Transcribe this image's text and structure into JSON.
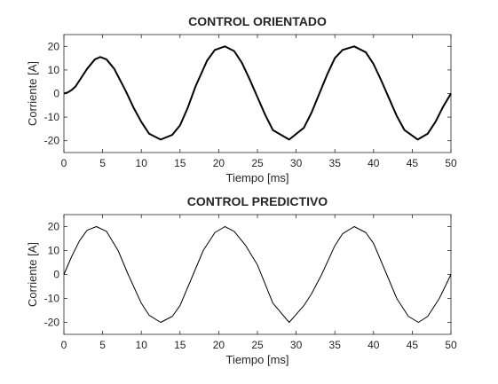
{
  "chart_data": [
    {
      "type": "line",
      "title": "CONTROL ORIENTADO",
      "xlabel": "Tiempo [ms]",
      "ylabel": "Corriente [A]",
      "xlim": [
        0,
        50
      ],
      "ylim": [
        -25,
        25
      ],
      "xticks": [
        "0",
        "5",
        "10",
        "15",
        "20",
        "25",
        "30",
        "35",
        "40",
        "45",
        "50"
      ],
      "yticks": [
        "-20",
        "-10",
        "0",
        "10",
        "20"
      ],
      "grid": false,
      "line_color": "#000000",
      "series": [
        {
          "x": [
            0,
            0.5,
            1,
            1.5,
            2,
            3,
            4,
            4.7,
            5.5,
            6.5,
            8,
            9,
            10,
            11,
            12.5,
            14,
            15,
            16,
            17,
            18.5,
            19.5,
            20.8,
            22,
            23,
            24,
            25,
            26,
            27,
            29.1,
            31,
            32,
            33,
            34,
            35,
            36,
            37.5,
            39,
            40,
            41,
            42,
            43,
            44,
            45.7,
            47,
            48,
            49,
            50
          ],
          "y": [
            0,
            0.5,
            1.5,
            3,
            5.5,
            10.5,
            14.5,
            15.5,
            14.5,
            10.5,
            1,
            -6,
            -12,
            -17,
            -19.5,
            -17.5,
            -13.5,
            -6,
            3,
            14,
            18.5,
            20,
            18,
            13,
            6,
            -1.5,
            -9,
            -15.5,
            -19.5,
            -14.5,
            -8,
            0,
            8,
            15,
            18.5,
            20,
            17.5,
            12.5,
            5.5,
            -2,
            -9.5,
            -15.5,
            -19.5,
            -17,
            -12,
            -5.5,
            0
          ]
        }
      ]
    },
    {
      "type": "line",
      "title": "CONTROL PREDICTIVO",
      "xlabel": "Tiempo [ms]",
      "ylabel": "Corriente [A]",
      "xlim": [
        0,
        50
      ],
      "ylim": [
        -25,
        25
      ],
      "xticks": [
        "0",
        "5",
        "10",
        "15",
        "20",
        "25",
        "30",
        "35",
        "40",
        "45",
        "50"
      ],
      "yticks": [
        "-20",
        "-10",
        "0",
        "10",
        "20"
      ],
      "grid": false,
      "line_color": "#000000",
      "series": [
        {
          "x": [
            0,
            1,
            2,
            3,
            4.2,
            5.5,
            7,
            8.3,
            10,
            11,
            12.5,
            14,
            15,
            16.7,
            18,
            19.5,
            20.8,
            22,
            23.5,
            25,
            27,
            29.1,
            31,
            32,
            33.3,
            35,
            36,
            37.5,
            39,
            40,
            41.7,
            43,
            44.5,
            45.8,
            47,
            48.5,
            50
          ],
          "y": [
            0,
            7.5,
            14,
            18.5,
            20,
            18,
            10,
            0,
            -12,
            -17,
            -20,
            -17.5,
            -13,
            0,
            10,
            17.5,
            20,
            18,
            12,
            4,
            -12,
            -20,
            -13,
            -8,
            0,
            12,
            17,
            20,
            17.5,
            13,
            0,
            -10,
            -17.5,
            -20,
            -17.5,
            -10,
            0
          ]
        }
      ]
    }
  ]
}
